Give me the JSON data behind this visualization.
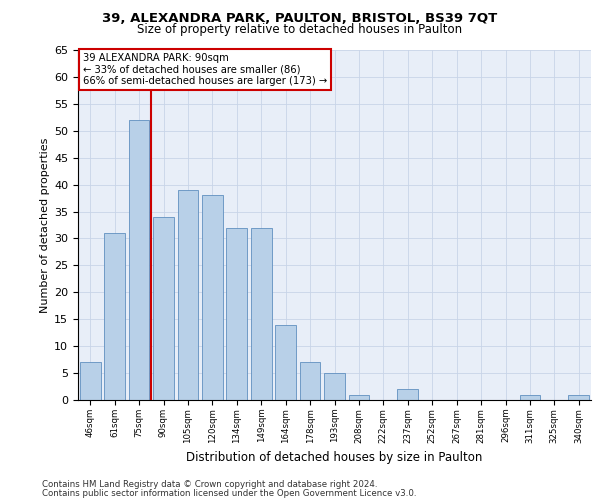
{
  "title1": "39, ALEXANDRA PARK, PAULTON, BRISTOL, BS39 7QT",
  "title2": "Size of property relative to detached houses in Paulton",
  "xlabel": "Distribution of detached houses by size in Paulton",
  "ylabel": "Number of detached properties",
  "categories": [
    "46sqm",
    "61sqm",
    "75sqm",
    "90sqm",
    "105sqm",
    "120sqm",
    "134sqm",
    "149sqm",
    "164sqm",
    "178sqm",
    "193sqm",
    "208sqm",
    "222sqm",
    "237sqm",
    "252sqm",
    "267sqm",
    "281sqm",
    "296sqm",
    "311sqm",
    "325sqm",
    "340sqm"
  ],
  "values": [
    7,
    31,
    52,
    34,
    39,
    38,
    32,
    32,
    14,
    7,
    5,
    1,
    0,
    2,
    0,
    0,
    0,
    0,
    1,
    0,
    1
  ],
  "bar_color": "#b8d0e8",
  "bar_edge_color": "#6090c0",
  "red_line_color": "#cc0000",
  "annotation_text": "39 ALEXANDRA PARK: 90sqm\n← 33% of detached houses are smaller (86)\n66% of semi-detached houses are larger (173) →",
  "annotation_box_color": "#ffffff",
  "annotation_box_edge_color": "#cc0000",
  "ylim": [
    0,
    65
  ],
  "yticks": [
    0,
    5,
    10,
    15,
    20,
    25,
    30,
    35,
    40,
    45,
    50,
    55,
    60,
    65
  ],
  "grid_color": "#c8d4e8",
  "background_color": "#e8eef8",
  "footer_line1": "Contains HM Land Registry data © Crown copyright and database right 2024.",
  "footer_line2": "Contains public sector information licensed under the Open Government Licence v3.0."
}
